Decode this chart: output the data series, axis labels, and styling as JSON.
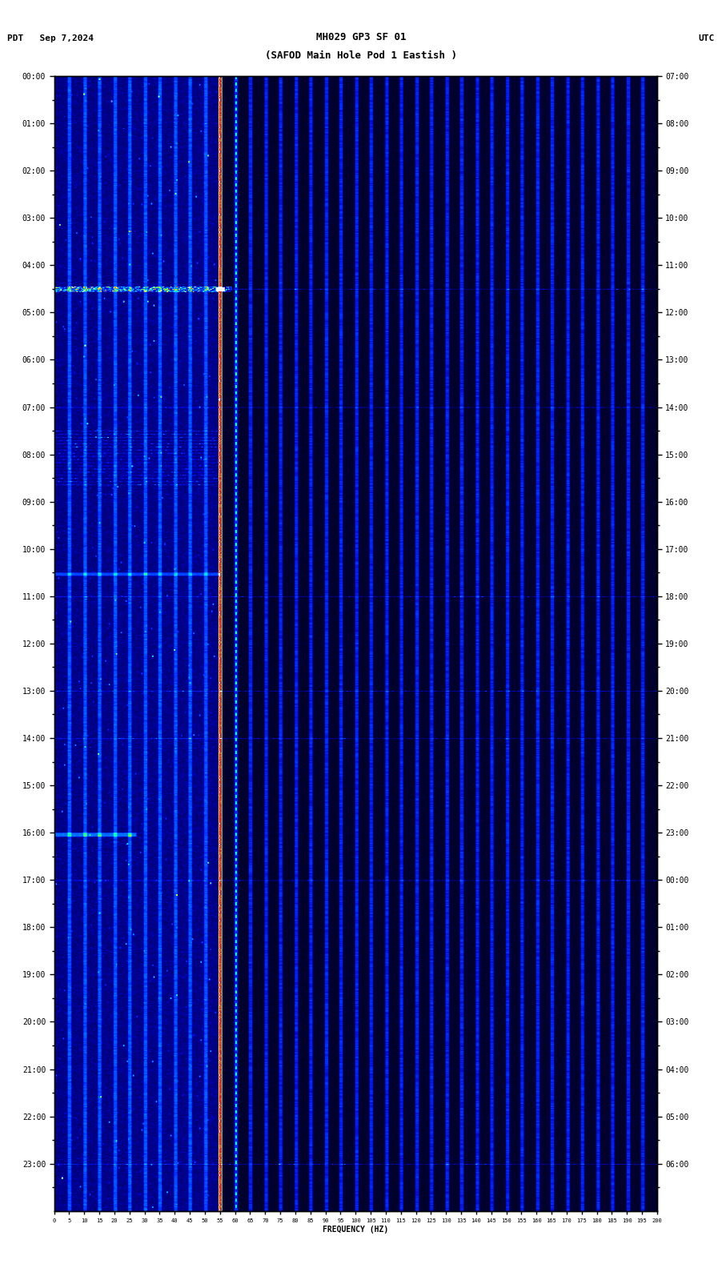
{
  "title_line1": "MH029 GP3 SF 01",
  "title_line2": "(SAFOD Main Hole Pod 1 Eastish )",
  "top_left_text": "PDT   Sep 7,2024",
  "top_right_text": "UTC",
  "left_yticks": [
    "00:00",
    "01:00",
    "02:00",
    "03:00",
    "04:00",
    "05:00",
    "06:00",
    "07:00",
    "08:00",
    "09:00",
    "10:00",
    "11:00",
    "12:00",
    "13:00",
    "14:00",
    "15:00",
    "16:00",
    "17:00",
    "18:00",
    "19:00",
    "20:00",
    "21:00",
    "22:00",
    "23:00"
  ],
  "right_yticks": [
    "07:00",
    "08:00",
    "09:00",
    "10:00",
    "11:00",
    "12:00",
    "13:00",
    "14:00",
    "15:00",
    "16:00",
    "17:00",
    "18:00",
    "19:00",
    "20:00",
    "21:00",
    "22:00",
    "23:00",
    "00:00",
    "01:00",
    "02:00",
    "03:00",
    "04:00",
    "05:00",
    "06:00"
  ],
  "xticks": [
    0,
    5,
    10,
    15,
    20,
    25,
    30,
    35,
    40,
    45,
    50,
    55,
    60,
    65,
    70,
    75,
    80,
    85,
    90,
    95,
    100,
    105,
    110,
    115,
    120,
    125,
    130,
    135,
    140,
    145,
    150,
    155,
    160,
    165,
    170,
    175,
    180,
    185,
    190,
    195,
    200
  ],
  "xlabel": "FREQUENCY (HZ)",
  "freq_max": 200,
  "time_steps": 1440,
  "freq_bins": 500,
  "fig_width": 9.02,
  "fig_height": 15.84,
  "dpi": 100,
  "vertical_lines_hz": [
    5,
    10,
    15,
    20,
    25,
    30,
    35,
    40,
    45,
    50,
    55,
    60,
    65,
    70,
    75,
    80,
    85,
    90,
    95,
    100,
    105,
    110,
    115,
    120,
    125,
    130,
    135,
    140,
    145,
    150,
    155,
    160,
    165,
    170,
    175,
    180,
    185,
    190,
    195,
    200
  ],
  "bright_vertical_hz": 55.0,
  "second_bright_hz": 60.0,
  "event_bright_time": 270,
  "event_bright_freq": 50,
  "event2_time": 660,
  "horiz_line1_time": 660,
  "horiz_line2_time": 270,
  "horiz_line3_time": 1020,
  "activity_cutoff_hz": 55
}
